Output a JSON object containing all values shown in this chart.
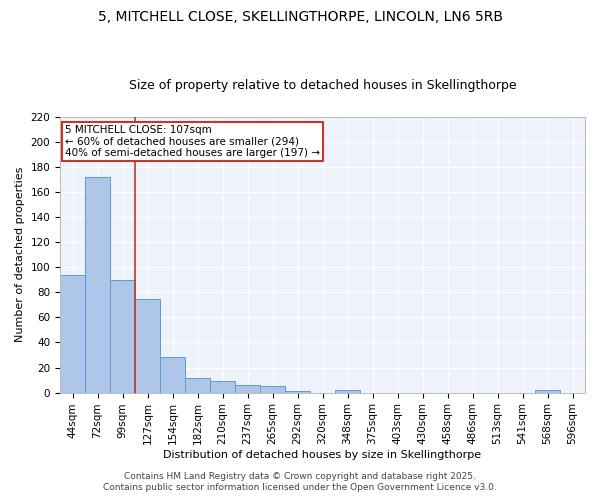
{
  "title1": "5, MITCHELL CLOSE, SKELLINGTHORPE, LINCOLN, LN6 5RB",
  "title2": "Size of property relative to detached houses in Skellingthorpe",
  "xlabel": "Distribution of detached houses by size in Skellingthorpe",
  "ylabel": "Number of detached properties",
  "categories": [
    "44sqm",
    "72sqm",
    "99sqm",
    "127sqm",
    "154sqm",
    "182sqm",
    "210sqm",
    "237sqm",
    "265sqm",
    "292sqm",
    "320sqm",
    "348sqm",
    "375sqm",
    "403sqm",
    "430sqm",
    "458sqm",
    "486sqm",
    "513sqm",
    "541sqm",
    "568sqm",
    "596sqm"
  ],
  "values": [
    94,
    172,
    90,
    75,
    28,
    12,
    9,
    6,
    5,
    1,
    0,
    2,
    0,
    0,
    0,
    0,
    0,
    0,
    0,
    2,
    0
  ],
  "bar_color": "#aec6e8",
  "bar_edge_color": "#5b9bd5",
  "vline_x_idx": 2,
  "vline_color": "#c0392b",
  "annotation_text": "5 MITCHELL CLOSE: 107sqm\n← 60% of detached houses are smaller (294)\n40% of semi-detached houses are larger (197) →",
  "annotation_box_color": "white",
  "annotation_box_edge": "#c0392b",
  "ylim": [
    0,
    220
  ],
  "yticks": [
    0,
    20,
    40,
    60,
    80,
    100,
    120,
    140,
    160,
    180,
    200,
    220
  ],
  "footer1": "Contains HM Land Registry data © Crown copyright and database right 2025.",
  "footer2": "Contains public sector information licensed under the Open Government Licence v3.0.",
  "bg_color": "#eef2fb",
  "grid_color": "white",
  "title_fontsize": 10,
  "subtitle_fontsize": 9,
  "axis_label_fontsize": 8,
  "tick_fontsize": 7.5,
  "footer_fontsize": 6.5
}
